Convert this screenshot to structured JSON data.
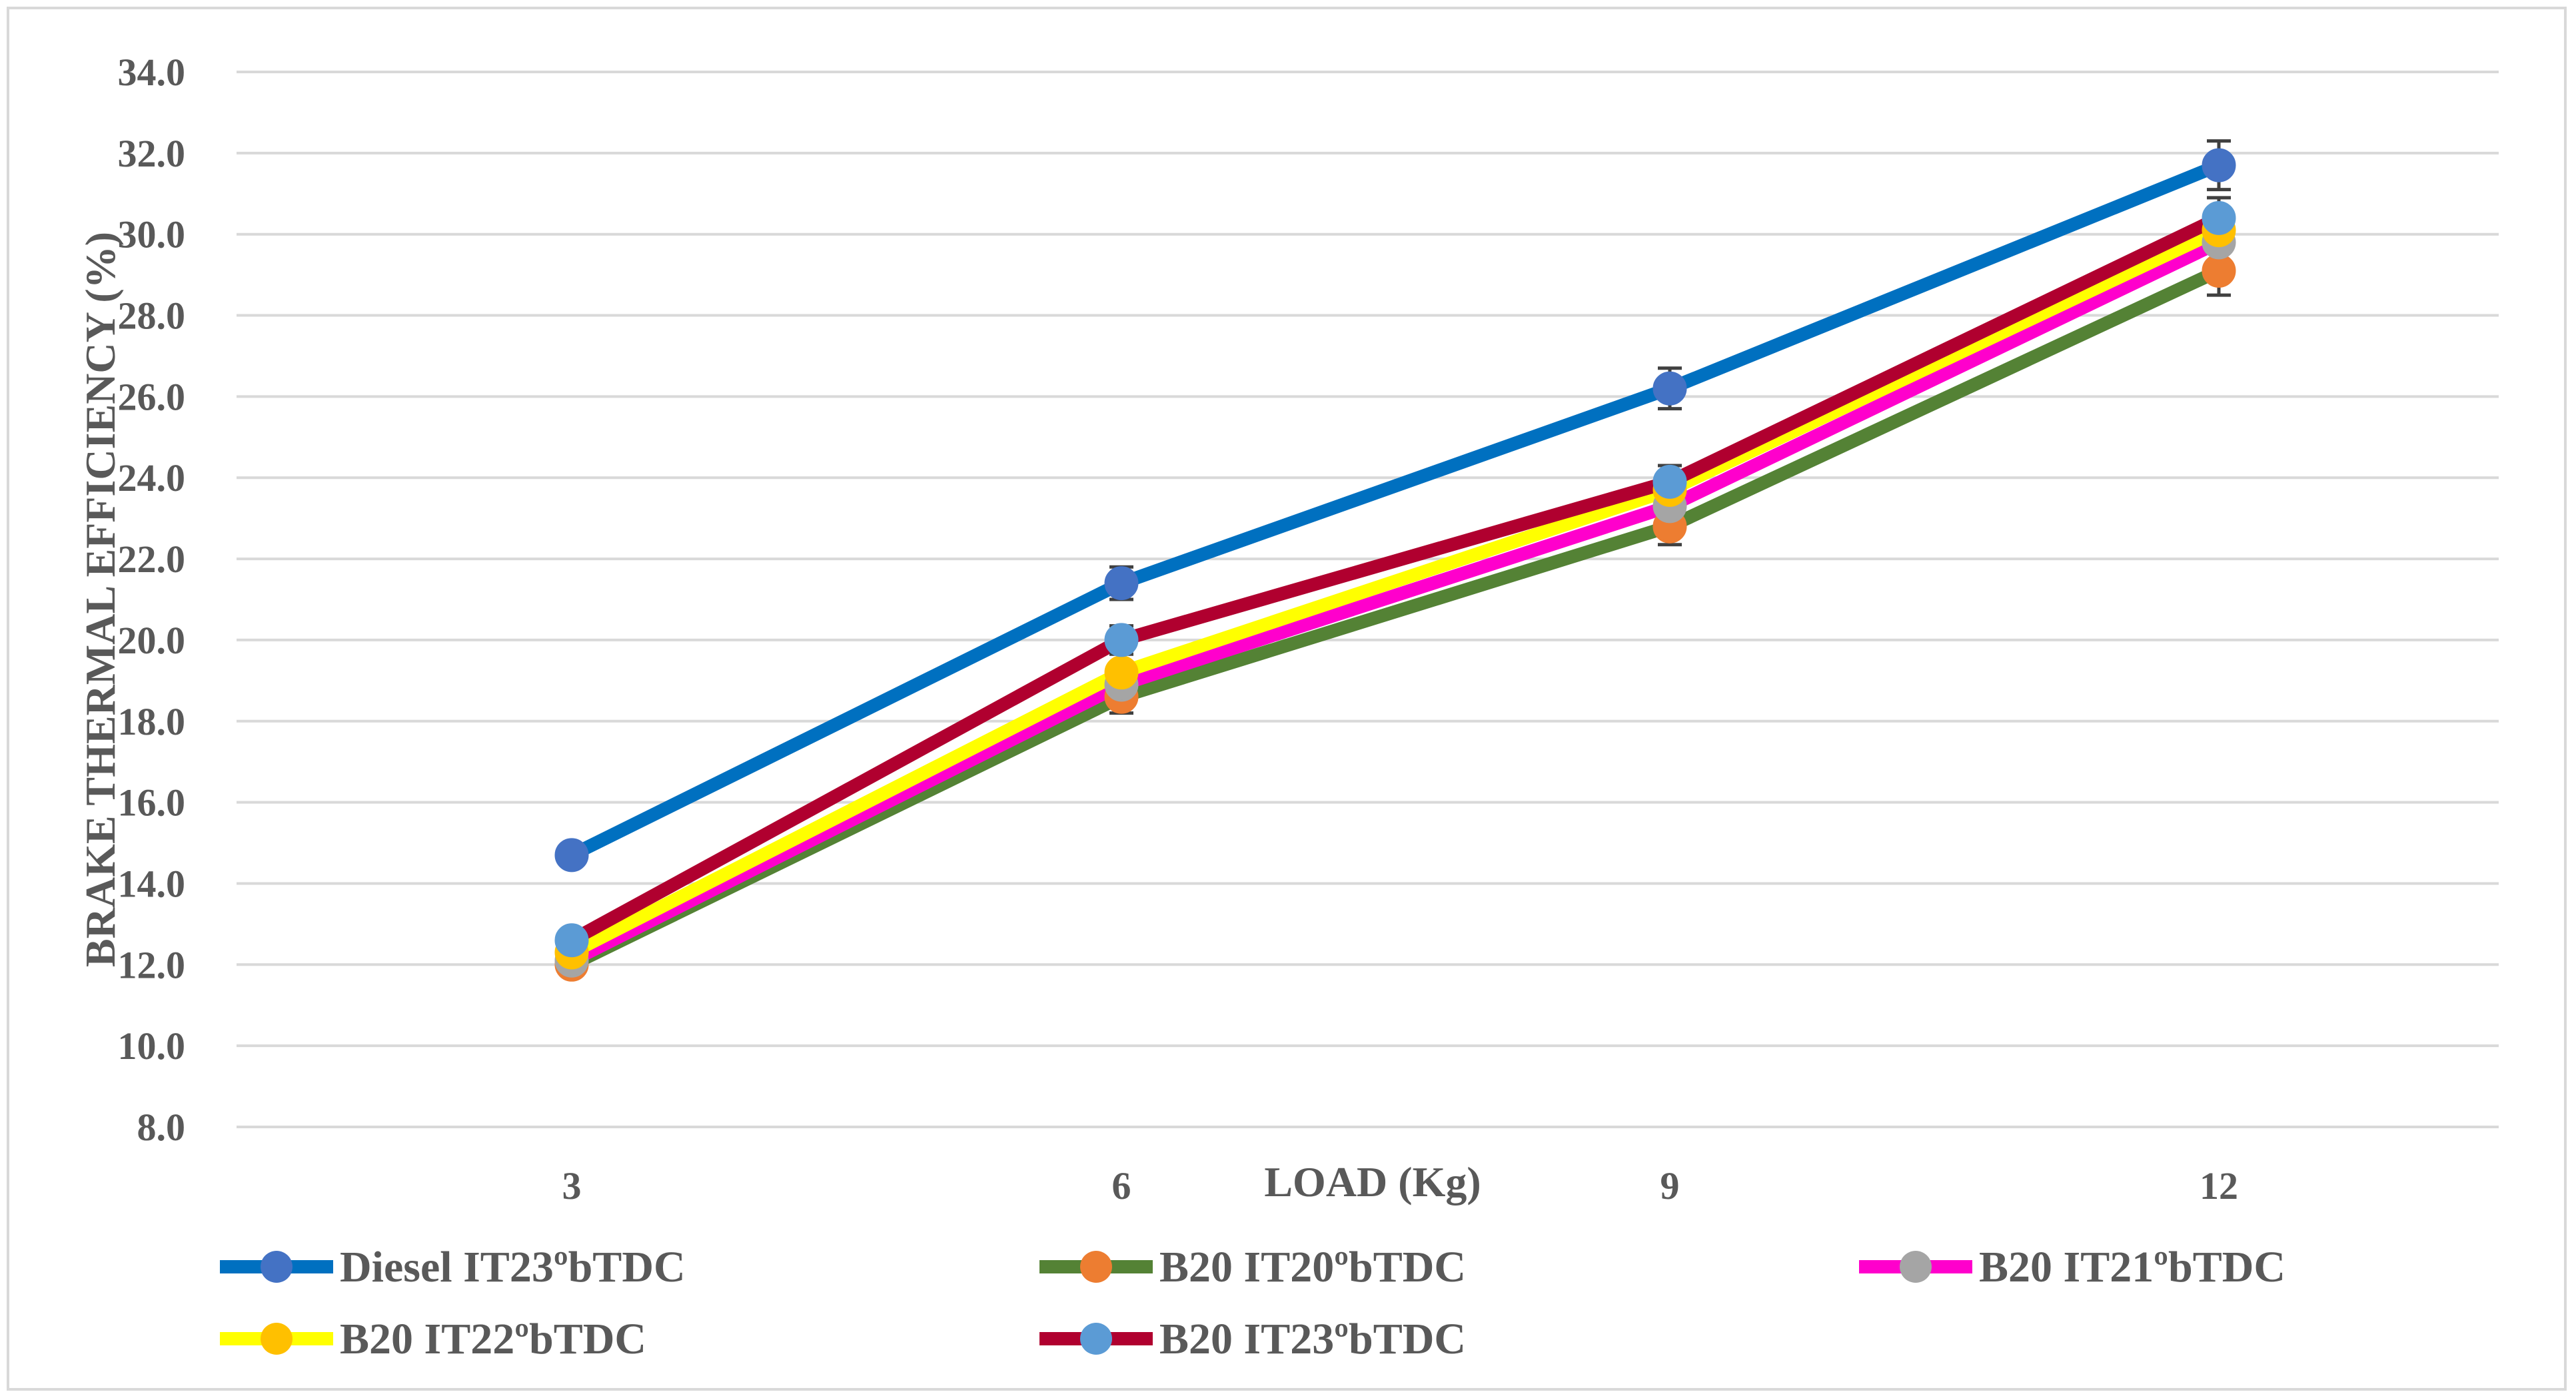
{
  "chart_data": {
    "type": "line",
    "title": "",
    "xlabel": "LOAD (Kg)",
    "ylabel": "BRAKE THERMAL EFFICIENCY (%)",
    "categories": [
      "3",
      "6",
      "9",
      "12"
    ],
    "ylim": [
      8.0,
      34.0
    ],
    "yticks": [
      "8.0",
      "10.0",
      "12.0",
      "14.0",
      "16.0",
      "18.0",
      "20.0",
      "22.0",
      "24.0",
      "26.0",
      "28.0",
      "30.0",
      "32.0",
      "34.0"
    ],
    "grid": true,
    "legend_position": "bottom",
    "series": [
      {
        "name": "Diesel IT23ºbTDC",
        "line_color": "#0070c0",
        "marker_color": "#4472c4",
        "values": [
          14.7,
          21.4,
          26.2,
          31.7
        ],
        "errors": [
          0.25,
          0.4,
          0.5,
          0.6
        ]
      },
      {
        "name": "B20 IT20ºbTDC",
        "line_color": "#548235",
        "marker_color": "#ed7d31",
        "values": [
          12.0,
          18.6,
          22.8,
          29.1
        ],
        "errors": [
          0.2,
          0.4,
          0.45,
          0.6
        ]
      },
      {
        "name": "B20 IT21ºbTDC",
        "line_color": "#ff00cc",
        "marker_color": "#a5a5a5",
        "values": [
          12.1,
          18.9,
          23.3,
          29.8
        ],
        "errors": [
          0,
          0,
          0,
          0
        ]
      },
      {
        "name": "B20 IT22ºbTDC",
        "line_color": "#ffff00",
        "marker_color": "#ffc000",
        "values": [
          12.3,
          19.2,
          23.7,
          30.1
        ],
        "errors": [
          0,
          0,
          0,
          0
        ]
      },
      {
        "name": "B20 IT23ºbTDC",
        "line_color": "#b0002f",
        "marker_color": "#5b9bd5",
        "values": [
          12.6,
          20.0,
          23.9,
          30.4
        ],
        "errors": [
          0,
          0.35,
          0.4,
          0.5
        ]
      }
    ]
  }
}
